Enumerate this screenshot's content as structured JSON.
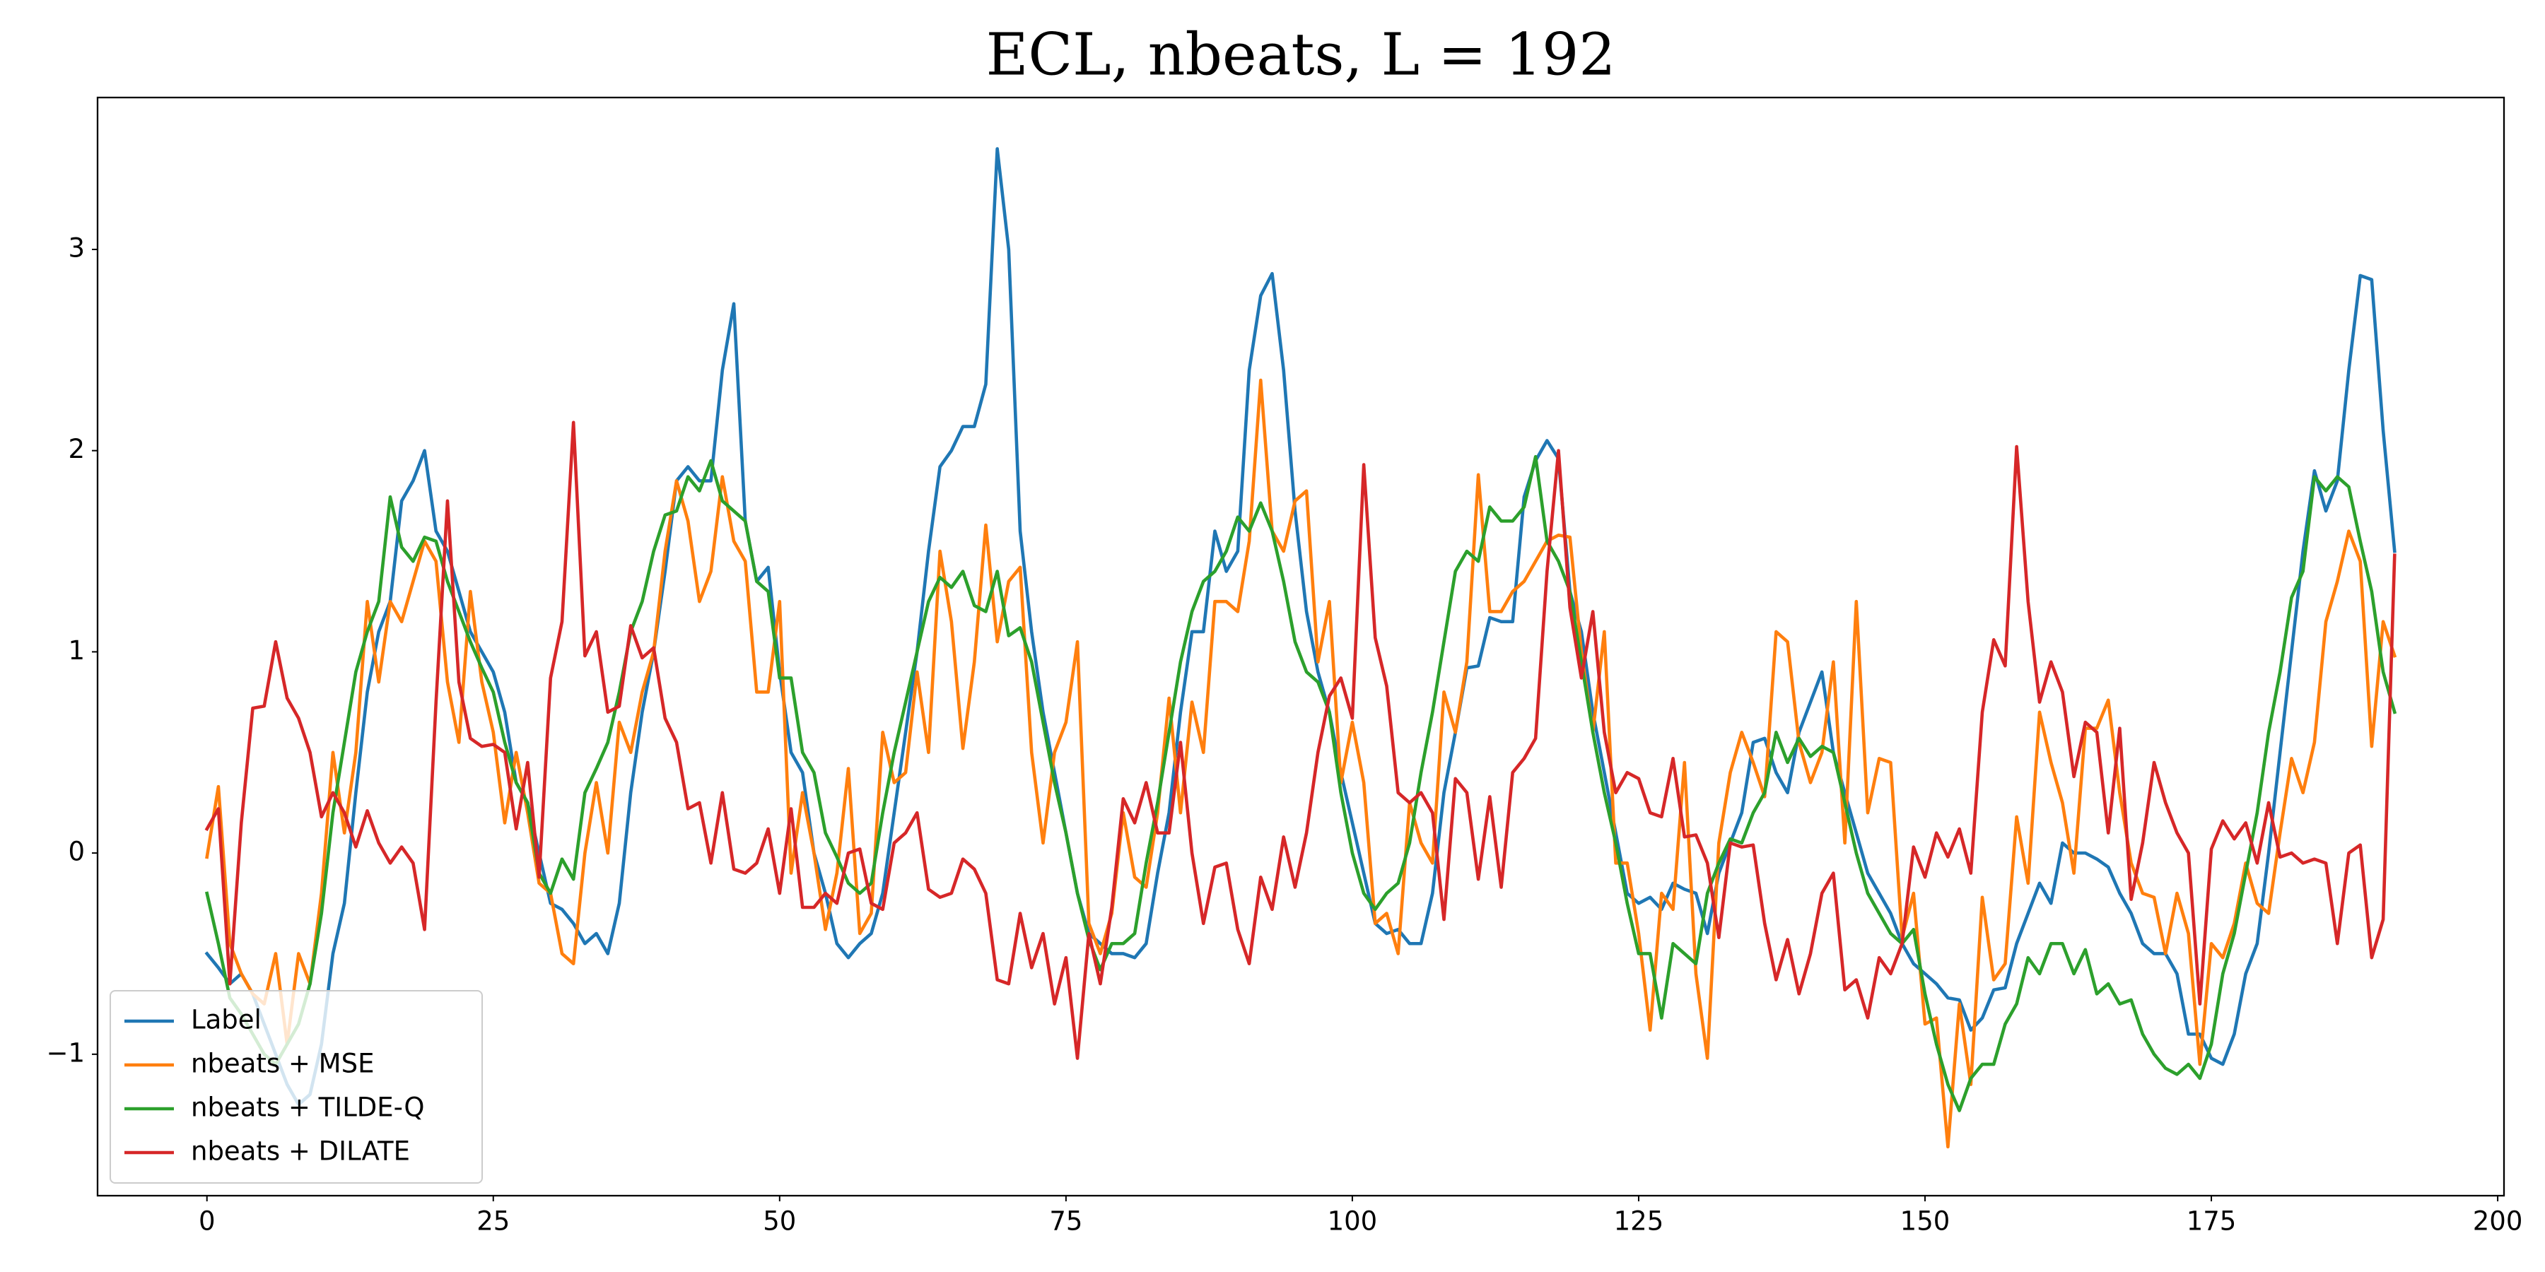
{
  "chart_data": {
    "type": "line",
    "title": "ECL, nbeats, L = 192",
    "x": [
      0,
      1,
      2,
      3,
      4,
      5,
      6,
      7,
      8,
      9,
      10,
      11,
      12,
      13,
      14,
      15,
      16,
      17,
      18,
      19,
      20,
      21,
      22,
      23,
      24,
      25,
      26,
      27,
      28,
      29,
      30,
      31,
      32,
      33,
      34,
      35,
      36,
      37,
      38,
      39,
      40,
      41,
      42,
      43,
      44,
      45,
      46,
      47,
      48,
      49,
      50,
      51,
      52,
      53,
      54,
      55,
      56,
      57,
      58,
      59,
      60,
      61,
      62,
      63,
      64,
      65,
      66,
      67,
      68,
      69,
      70,
      71,
      72,
      73,
      74,
      75,
      76,
      77,
      78,
      79,
      80,
      81,
      82,
      83,
      84,
      85,
      86,
      87,
      88,
      89,
      90,
      91,
      92,
      93,
      94,
      95,
      96,
      97,
      98,
      99,
      100,
      101,
      102,
      103,
      104,
      105,
      106,
      107,
      108,
      109,
      110,
      111,
      112,
      113,
      114,
      115,
      116,
      117,
      118,
      119,
      120,
      121,
      122,
      123,
      124,
      125,
      126,
      127,
      128,
      129,
      130,
      131,
      132,
      133,
      134,
      135,
      136,
      137,
      138,
      139,
      140,
      141,
      142,
      143,
      144,
      145,
      146,
      147,
      148,
      149,
      150,
      151,
      152,
      153,
      154,
      155,
      156,
      157,
      158,
      159,
      160,
      161,
      162,
      163,
      164,
      165,
      166,
      167,
      168,
      169,
      170,
      171,
      172,
      173,
      174,
      175,
      176,
      177,
      178,
      179,
      180,
      181,
      182,
      183,
      184,
      185,
      186,
      187,
      188,
      189,
      190,
      191
    ],
    "series": [
      {
        "name": "Label",
        "color": "#1f77b4",
        "values": [
          -0.5,
          -0.57,
          -0.65,
          -0.6,
          -0.7,
          -0.85,
          -1.0,
          -1.15,
          -1.25,
          -1.2,
          -0.95,
          -0.5,
          -0.25,
          0.3,
          0.8,
          1.1,
          1.25,
          1.75,
          1.85,
          2.0,
          1.6,
          1.5,
          1.3,
          1.1,
          1.0,
          0.9,
          0.7,
          0.35,
          0.25,
          0.0,
          -0.25,
          -0.28,
          -0.35,
          -0.45,
          -0.4,
          -0.5,
          -0.25,
          0.3,
          0.7,
          1.0,
          1.4,
          1.85,
          1.92,
          1.85,
          1.85,
          2.4,
          2.73,
          1.65,
          1.35,
          1.42,
          0.9,
          0.5,
          0.4,
          0.0,
          -0.2,
          -0.45,
          -0.52,
          -0.45,
          -0.4,
          -0.2,
          0.2,
          0.6,
          1.0,
          1.5,
          1.92,
          2.0,
          2.12,
          2.12,
          2.33,
          3.5,
          3.0,
          1.6,
          1.1,
          0.7,
          0.4,
          0.1,
          -0.2,
          -0.4,
          -0.45,
          -0.5,
          -0.5,
          -0.52,
          -0.45,
          -0.1,
          0.2,
          0.7,
          1.1,
          1.1,
          1.6,
          1.4,
          1.5,
          2.4,
          2.77,
          2.88,
          2.4,
          1.7,
          1.2,
          0.9,
          0.7,
          0.4,
          0.15,
          -0.1,
          -0.35,
          -0.4,
          -0.38,
          -0.45,
          -0.45,
          -0.2,
          0.3,
          0.6,
          0.92,
          0.93,
          1.17,
          1.15,
          1.15,
          1.77,
          1.95,
          2.05,
          1.96,
          1.3,
          1.1,
          0.7,
          0.4,
          0.1,
          -0.2,
          -0.25,
          -0.22,
          -0.28,
          -0.15,
          -0.18,
          -0.2,
          -0.4,
          -0.1,
          0.05,
          0.2,
          0.55,
          0.57,
          0.4,
          0.3,
          0.6,
          0.75,
          0.9,
          0.5,
          0.3,
          0.1,
          -0.1,
          -0.2,
          -0.3,
          -0.45,
          -0.55,
          -0.6,
          -0.65,
          -0.72,
          -0.73,
          -0.88,
          -0.82,
          -0.68,
          -0.67,
          -0.45,
          -0.3,
          -0.15,
          -0.25,
          0.05,
          0.0,
          0.0,
          -0.03,
          -0.07,
          -0.2,
          -0.3,
          -0.45,
          -0.5,
          -0.5,
          -0.6,
          -0.9,
          -0.9,
          -1.02,
          -1.05,
          -0.9,
          -0.6,
          -0.45,
          0.0,
          0.5,
          1.0,
          1.5,
          1.9,
          1.7,
          1.85,
          2.4,
          2.87,
          2.85,
          2.1,
          1.5
        ]
      },
      {
        "name": "nbeats + MSE",
        "color": "#ff7f0e",
        "values": [
          -0.02,
          0.33,
          -0.45,
          -0.6,
          -0.7,
          -0.75,
          -0.5,
          -0.95,
          -0.5,
          -0.65,
          -0.2,
          0.5,
          0.1,
          0.5,
          1.25,
          0.85,
          1.25,
          1.15,
          1.35,
          1.55,
          1.45,
          0.85,
          0.55,
          1.3,
          0.85,
          0.6,
          0.15,
          0.5,
          0.2,
          -0.15,
          -0.2,
          -0.5,
          -0.55,
          0.0,
          0.35,
          0.0,
          0.65,
          0.5,
          0.8,
          1.0,
          1.5,
          1.85,
          1.65,
          1.25,
          1.4,
          1.87,
          1.55,
          1.45,
          0.8,
          0.8,
          1.25,
          -0.1,
          0.3,
          0.0,
          -0.38,
          -0.1,
          0.42,
          -0.4,
          -0.3,
          0.6,
          0.35,
          0.4,
          0.9,
          0.5,
          1.5,
          1.15,
          0.52,
          0.95,
          1.63,
          1.05,
          1.35,
          1.42,
          0.5,
          0.05,
          0.5,
          0.65,
          1.05,
          -0.35,
          -0.5,
          -0.3,
          0.2,
          -0.12,
          -0.17,
          0.2,
          0.77,
          0.2,
          0.75,
          0.5,
          1.25,
          1.25,
          1.2,
          1.55,
          2.35,
          1.6,
          1.5,
          1.75,
          1.8,
          0.95,
          1.25,
          0.35,
          0.65,
          0.35,
          -0.35,
          -0.3,
          -0.5,
          0.25,
          0.05,
          -0.05,
          0.8,
          0.6,
          0.95,
          1.88,
          1.2,
          1.2,
          1.3,
          1.35,
          1.45,
          1.55,
          1.58,
          1.57,
          1.0,
          0.6,
          1.1,
          -0.05,
          -0.05,
          -0.4,
          -0.88,
          -0.2,
          -0.28,
          0.45,
          -0.6,
          -1.02,
          0.05,
          0.4,
          0.6,
          0.45,
          0.28,
          1.1,
          1.05,
          0.55,
          0.35,
          0.5,
          0.95,
          0.05,
          1.25,
          0.2,
          0.47,
          0.45,
          -0.42,
          -0.2,
          -0.85,
          -0.82,
          -1.46,
          -0.75,
          -1.15,
          -0.22,
          -0.63,
          -0.55,
          0.18,
          -0.15,
          0.7,
          0.45,
          0.25,
          -0.1,
          0.62,
          0.62,
          0.76,
          0.3,
          -0.05,
          -0.2,
          -0.22,
          -0.5,
          -0.2,
          -0.4,
          -1.05,
          -0.45,
          -0.52,
          -0.35,
          -0.05,
          -0.25,
          -0.3,
          0.1,
          0.47,
          0.3,
          0.55,
          1.15,
          1.35,
          1.6,
          1.45,
          0.53,
          1.15,
          0.98
        ]
      },
      {
        "name": "nbeats + TILDE-Q",
        "color": "#2ca02c",
        "values": [
          -0.2,
          -0.45,
          -0.72,
          -0.8,
          -0.9,
          -1.0,
          -1.05,
          -0.95,
          -0.85,
          -0.65,
          -0.3,
          0.2,
          0.55,
          0.9,
          1.1,
          1.25,
          1.77,
          1.52,
          1.45,
          1.57,
          1.55,
          1.35,
          1.2,
          1.05,
          0.92,
          0.8,
          0.55,
          0.35,
          0.25,
          -0.1,
          -0.2,
          -0.03,
          -0.13,
          0.3,
          0.42,
          0.55,
          0.8,
          1.1,
          1.25,
          1.5,
          1.68,
          1.7,
          1.87,
          1.8,
          1.95,
          1.75,
          1.7,
          1.65,
          1.35,
          1.3,
          0.87,
          0.87,
          0.5,
          0.4,
          0.1,
          -0.02,
          -0.15,
          -0.2,
          -0.15,
          0.2,
          0.5,
          0.75,
          1.0,
          1.25,
          1.37,
          1.32,
          1.4,
          1.23,
          1.2,
          1.4,
          1.08,
          1.12,
          0.95,
          0.65,
          0.35,
          0.1,
          -0.2,
          -0.43,
          -0.58,
          -0.45,
          -0.45,
          -0.4,
          -0.05,
          0.25,
          0.6,
          0.95,
          1.2,
          1.35,
          1.4,
          1.5,
          1.67,
          1.6,
          1.74,
          1.6,
          1.35,
          1.05,
          0.9,
          0.85,
          0.7,
          0.3,
          0.0,
          -0.2,
          -0.28,
          -0.2,
          -0.15,
          0.05,
          0.4,
          0.7,
          1.05,
          1.4,
          1.5,
          1.45,
          1.72,
          1.65,
          1.65,
          1.72,
          1.97,
          1.55,
          1.45,
          1.3,
          0.95,
          0.6,
          0.3,
          0.05,
          -0.25,
          -0.5,
          -0.5,
          -0.82,
          -0.45,
          -0.5,
          -0.55,
          -0.2,
          -0.05,
          0.07,
          0.05,
          0.2,
          0.3,
          0.6,
          0.45,
          0.57,
          0.48,
          0.53,
          0.5,
          0.25,
          0.0,
          -0.2,
          -0.3,
          -0.4,
          -0.45,
          -0.38,
          -0.7,
          -0.95,
          -1.15,
          -1.28,
          -1.12,
          -1.05,
          -1.05,
          -0.85,
          -0.75,
          -0.52,
          -0.6,
          -0.45,
          -0.45,
          -0.6,
          -0.48,
          -0.7,
          -0.65,
          -0.75,
          -0.73,
          -0.9,
          -1.0,
          -1.07,
          -1.1,
          -1.05,
          -1.12,
          -0.95,
          -0.6,
          -0.4,
          -0.1,
          0.2,
          0.6,
          0.9,
          1.27,
          1.4,
          1.87,
          1.8,
          1.87,
          1.82,
          1.55,
          1.3,
          0.9,
          0.7
        ]
      },
      {
        "name": "nbeats + DILATE",
        "color": "#d62728",
        "values": [
          0.12,
          0.22,
          -0.65,
          0.15,
          0.72,
          0.73,
          1.05,
          0.77,
          0.67,
          0.5,
          0.18,
          0.3,
          0.2,
          0.03,
          0.21,
          0.05,
          -0.05,
          0.03,
          -0.05,
          -0.38,
          0.75,
          1.75,
          0.85,
          0.57,
          0.53,
          0.54,
          0.5,
          0.12,
          0.45,
          -0.12,
          0.87,
          1.15,
          2.14,
          0.98,
          1.1,
          0.7,
          0.73,
          1.13,
          0.97,
          1.02,
          0.67,
          0.55,
          0.22,
          0.25,
          -0.05,
          0.3,
          -0.08,
          -0.1,
          -0.05,
          0.12,
          -0.2,
          0.22,
          -0.27,
          -0.27,
          -0.2,
          -0.25,
          0.0,
          0.02,
          -0.25,
          -0.28,
          0.05,
          0.1,
          0.2,
          -0.18,
          -0.22,
          -0.2,
          -0.03,
          -0.08,
          -0.2,
          -0.63,
          -0.65,
          -0.3,
          -0.57,
          -0.4,
          -0.75,
          -0.52,
          -1.02,
          -0.4,
          -0.65,
          -0.27,
          0.27,
          0.15,
          0.35,
          0.1,
          0.1,
          0.55,
          0.0,
          -0.35,
          -0.07,
          -0.05,
          -0.38,
          -0.55,
          -0.12,
          -0.28,
          0.08,
          -0.17,
          0.1,
          0.5,
          0.78,
          0.87,
          0.67,
          1.93,
          1.07,
          0.83,
          0.3,
          0.25,
          0.3,
          0.2,
          -0.33,
          0.37,
          0.3,
          -0.13,
          0.28,
          -0.17,
          0.4,
          0.47,
          0.57,
          1.4,
          2.0,
          1.22,
          0.87,
          1.2,
          0.6,
          0.3,
          0.4,
          0.37,
          0.2,
          0.18,
          0.47,
          0.08,
          0.09,
          -0.05,
          -0.42,
          0.05,
          0.03,
          0.04,
          -0.35,
          -0.63,
          -0.43,
          -0.7,
          -0.5,
          -0.2,
          -0.1,
          -0.68,
          -0.63,
          -0.82,
          -0.52,
          -0.6,
          -0.45,
          0.03,
          -0.12,
          0.1,
          -0.02,
          0.12,
          -0.1,
          0.7,
          1.06,
          0.93,
          2.02,
          1.25,
          0.75,
          0.95,
          0.8,
          0.38,
          0.65,
          0.6,
          0.1,
          0.62,
          -0.23,
          0.05,
          0.45,
          0.25,
          0.1,
          0.0,
          -0.75,
          0.02,
          0.16,
          0.07,
          0.15,
          -0.05,
          0.25,
          -0.02,
          0.0,
          -0.05,
          -0.03,
          -0.05,
          -0.45,
          0.0,
          0.04,
          -0.52,
          -0.33,
          1.48
        ]
      }
    ],
    "xlim": [
      -9.55,
      200.55
    ],
    "xticks": [
      0,
      25,
      50,
      75,
      100,
      125,
      150,
      175,
      200
    ],
    "ylim": [
      -1.703,
      3.755
    ],
    "yticks": [
      {
        "value": -1,
        "label": "−1"
      },
      0,
      1,
      2,
      3
    ],
    "grid": false,
    "legend": "lower left"
  }
}
